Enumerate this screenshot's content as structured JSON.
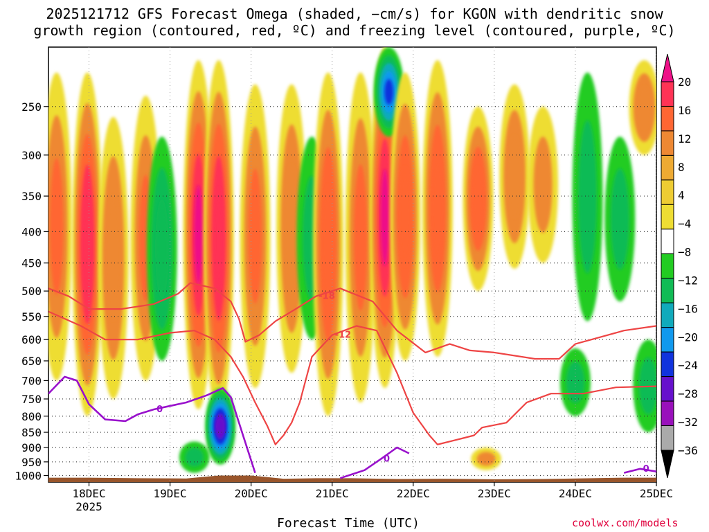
{
  "chart_data": {
    "type": "heatmap",
    "title_line1": "2025121712 GFS Forecast Omega (shaded, −cm/s) for KGON with dendritic snow",
    "title_line2": "growth region (contoured, red, ºC) and freezing level (contoured, purple, ºC)",
    "xlabel": "Forecast Time (UTC)",
    "ylabel": "",
    "credit": "coolwx.com/models",
    "x_ticks": [
      "18DEC",
      "19DEC",
      "20DEC",
      "21DEC",
      "22DEC",
      "23DEC",
      "24DEC",
      "25DEC"
    ],
    "x_tick_year": "2025",
    "x_range_days": [
      17.5,
      25.0
    ],
    "y_ticks": [
      250,
      300,
      350,
      400,
      450,
      500,
      550,
      600,
      650,
      700,
      750,
      800,
      850,
      900,
      950,
      1000
    ],
    "y_range_hpa": [
      200,
      1025
    ],
    "grid": true,
    "colorbar": {
      "labels": [
        "20",
        "16",
        "12",
        "8",
        "4",
        "−4",
        "−8",
        "−12",
        "−16",
        "−20",
        "−24",
        "−28",
        "−32",
        "−36"
      ],
      "colors": [
        "#ee1188",
        "#ff3355",
        "#ff6633",
        "#ee8833",
        "#eeaa33",
        "#eecc33",
        "#eedd33",
        "#ffffff",
        "#22cc22",
        "#11bb55",
        "#11aabb",
        "#1199ee",
        "#1133dd",
        "#6611cc",
        "#9911bb",
        "#aaaaaa",
        "#000000"
      ]
    },
    "omega_features": [
      {
        "day": 17.6,
        "p_top": 220,
        "p_bot": 700,
        "value": 12
      },
      {
        "day": 17.98,
        "p_top": 220,
        "p_bot": 800,
        "value": 18
      },
      {
        "day": 18.3,
        "p_top": 260,
        "p_bot": 750,
        "value": 10
      },
      {
        "day": 18.7,
        "p_top": 240,
        "p_bot": 700,
        "value": 12
      },
      {
        "day": 18.9,
        "p_top": 280,
        "p_bot": 650,
        "value": -10
      },
      {
        "day": 19.35,
        "p_top": 210,
        "p_bot": 780,
        "value": 20
      },
      {
        "day": 19.6,
        "p_top": 210,
        "p_bot": 800,
        "value": 18
      },
      {
        "day": 19.62,
        "p_top": 720,
        "p_bot": 960,
        "value": -26
      },
      {
        "day": 19.3,
        "p_top": 880,
        "p_bot": 990,
        "value": -8
      },
      {
        "day": 20.05,
        "p_top": 230,
        "p_bot": 720,
        "value": 12
      },
      {
        "day": 20.5,
        "p_top": 230,
        "p_bot": 680,
        "value": 10
      },
      {
        "day": 20.75,
        "p_top": 280,
        "p_bot": 600,
        "value": -8
      },
      {
        "day": 20.95,
        "p_top": 220,
        "p_bot": 800,
        "value": 14
      },
      {
        "day": 21.35,
        "p_top": 220,
        "p_bot": 760,
        "value": 12
      },
      {
        "day": 21.65,
        "p_top": 200,
        "p_bot": 720,
        "value": 20
      },
      {
        "day": 21.7,
        "p_top": 200,
        "p_bot": 280,
        "value": -20
      },
      {
        "day": 21.9,
        "p_top": 220,
        "p_bot": 650,
        "value": 14
      },
      {
        "day": 22.3,
        "p_top": 210,
        "p_bot": 640,
        "value": 14
      },
      {
        "day": 22.8,
        "p_top": 250,
        "p_bot": 500,
        "value": 14
      },
      {
        "day": 22.9,
        "p_top": 900,
        "p_bot": 980,
        "value": 8
      },
      {
        "day": 23.25,
        "p_top": 230,
        "p_bot": 460,
        "value": 10
      },
      {
        "day": 23.6,
        "p_top": 250,
        "p_bot": 450,
        "value": 8
      },
      {
        "day": 24.15,
        "p_top": 220,
        "p_bot": 560,
        "value": -8
      },
      {
        "day": 24.0,
        "p_top": 620,
        "p_bot": 800,
        "value": -8
      },
      {
        "day": 24.55,
        "p_top": 280,
        "p_bot": 520,
        "value": -8
      },
      {
        "day": 24.85,
        "p_top": 210,
        "p_bot": 300,
        "value": 10
      },
      {
        "day": 24.9,
        "p_top": 600,
        "p_bot": 850,
        "value": -8
      }
    ],
    "red_contours": [
      {
        "label": "-18",
        "points": [
          [
            17.5,
            495
          ],
          [
            17.75,
            510
          ],
          [
            18.0,
            535
          ],
          [
            18.4,
            535
          ],
          [
            18.8,
            525
          ],
          [
            19.1,
            505
          ],
          [
            19.25,
            485
          ],
          [
            19.55,
            495
          ],
          [
            19.75,
            520
          ],
          [
            19.85,
            555
          ],
          [
            19.93,
            605
          ],
          [
            20.1,
            590
          ],
          [
            20.3,
            560
          ],
          [
            20.55,
            535
          ],
          [
            20.8,
            510
          ],
          [
            21.1,
            495
          ],
          [
            21.5,
            520
          ],
          [
            21.8,
            580
          ],
          [
            22.15,
            630
          ],
          [
            22.45,
            610
          ],
          [
            22.7,
            625
          ],
          [
            23.0,
            630
          ],
          [
            23.5,
            645
          ],
          [
            23.8,
            645
          ],
          [
            24.0,
            610
          ],
          [
            24.4,
            590
          ],
          [
            24.6,
            580
          ],
          [
            25.0,
            570
          ]
        ]
      },
      {
        "label": "-12",
        "points": [
          [
            17.5,
            540
          ],
          [
            17.9,
            570
          ],
          [
            18.2,
            600
          ],
          [
            18.6,
            600
          ],
          [
            19.0,
            585
          ],
          [
            19.3,
            580
          ],
          [
            19.55,
            600
          ],
          [
            19.75,
            640
          ],
          [
            19.9,
            690
          ],
          [
            20.05,
            760
          ],
          [
            20.2,
            830
          ],
          [
            20.3,
            890
          ],
          [
            20.4,
            860
          ],
          [
            20.5,
            820
          ],
          [
            20.6,
            760
          ],
          [
            20.75,
            640
          ],
          [
            21.0,
            590
          ],
          [
            21.3,
            570
          ],
          [
            21.55,
            580
          ],
          [
            21.8,
            680
          ],
          [
            22.0,
            790
          ],
          [
            22.2,
            860
          ],
          [
            22.3,
            890
          ],
          [
            22.6,
            870
          ],
          [
            22.75,
            860
          ],
          [
            22.85,
            835
          ],
          [
            23.15,
            820
          ],
          [
            23.4,
            760
          ],
          [
            23.7,
            735
          ],
          [
            24.1,
            735
          ],
          [
            24.5,
            718
          ],
          [
            25.0,
            715
          ]
        ]
      }
    ],
    "purple_contours": [
      {
        "label": "0",
        "points": [
          [
            17.5,
            735
          ],
          [
            17.7,
            690
          ],
          [
            17.85,
            700
          ],
          [
            18.0,
            765
          ],
          [
            18.2,
            810
          ],
          [
            18.45,
            815
          ],
          [
            18.6,
            795
          ],
          [
            18.8,
            780
          ],
          [
            19.2,
            760
          ],
          [
            19.45,
            740
          ],
          [
            19.65,
            720
          ],
          [
            19.75,
            745
          ],
          [
            19.9,
            860
          ],
          [
            20.05,
            990
          ]
        ]
      },
      {
        "label": "0",
        "points": [
          [
            21.1,
            1010
          ],
          [
            21.4,
            980
          ],
          [
            21.6,
            940
          ],
          [
            21.8,
            900
          ],
          [
            21.95,
            920
          ]
        ]
      },
      {
        "label": "0",
        "points": [
          [
            24.6,
            990
          ],
          [
            24.8,
            975
          ],
          [
            25.0,
            985
          ]
        ]
      }
    ]
  }
}
